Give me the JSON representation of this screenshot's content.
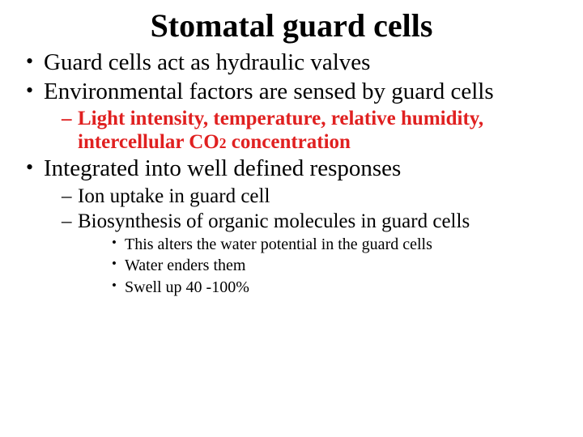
{
  "title": "Stomatal guard cells",
  "colors": {
    "text": "#000000",
    "accent": "#e02020",
    "background": "#ffffff"
  },
  "fonts": {
    "family": "Comic Sans MS",
    "title_size_pt": 40,
    "lvl1_size_pt": 29,
    "lvl2_size_pt": 25,
    "lvl3_size_pt": 20
  },
  "bullets": {
    "b1": "Guard cells act as hydraulic valves",
    "b2": "Environmental factors are sensed by guard cells",
    "b2_sub1_pre": "Light intensity, temperature, relative humidity, intercellular CO",
    "b2_sub1_sub": "2",
    "b2_sub1_post": " concentration",
    "b3": "Integrated into well defined responses",
    "b3_sub1": "Ion uptake in guard cell",
    "b3_sub2": "Biosynthesis of organic molecules in guard cells",
    "b3_sub2_a": "This alters the water potential in the guard cells",
    "b3_sub2_b": "Water enders them",
    "b3_sub2_c": "Swell up 40 -100%"
  }
}
